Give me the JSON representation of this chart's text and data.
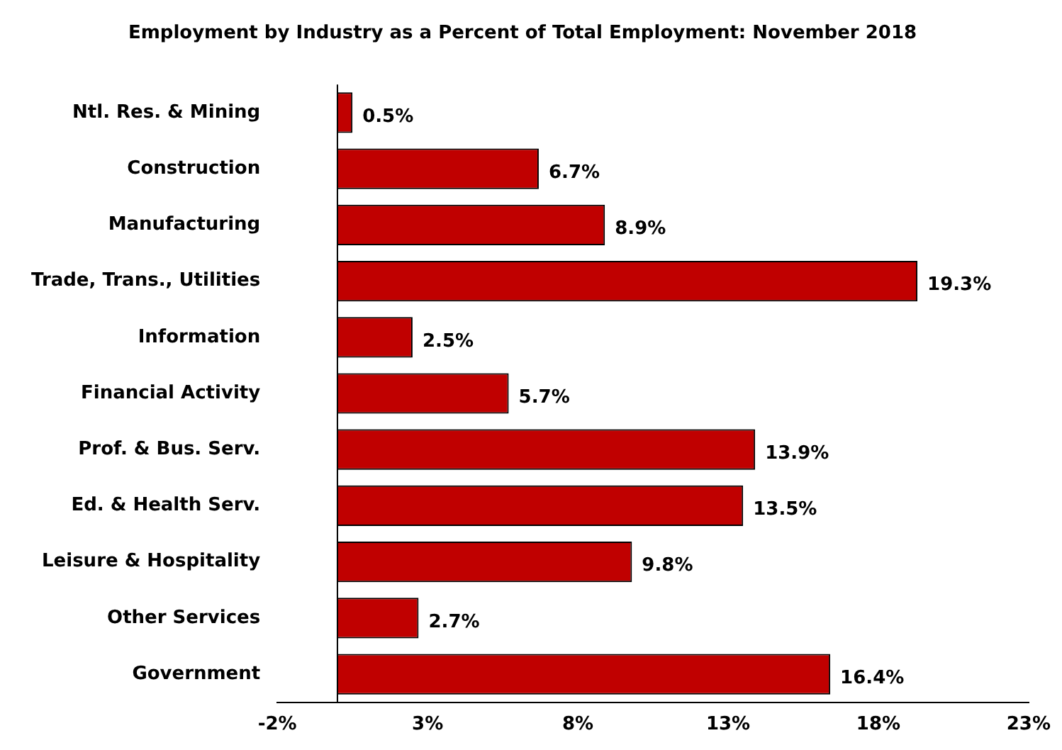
{
  "chart_data": {
    "type": "bar",
    "orientation": "horizontal",
    "title": "Employment by Industry as a Percent of Total Employment: November 2018",
    "categories": [
      "Ntl. Res. & Mining",
      "Construction",
      "Manufacturing",
      "Trade, Trans., Utilities",
      "Information",
      "Financial Activity",
      "Prof. & Bus. Serv.",
      "Ed. & Health Serv.",
      "Leisure & Hospitality",
      "Other Services",
      "Government"
    ],
    "values": [
      0.5,
      6.7,
      8.9,
      19.3,
      2.5,
      5.7,
      13.9,
      13.5,
      9.8,
      2.7,
      16.4
    ],
    "value_labels": [
      "0.5%",
      "6.7%",
      "8.9%",
      "19.3%",
      "2.5%",
      "5.7%",
      "13.9%",
      "13.5%",
      "9.8%",
      "2.7%",
      "16.4%"
    ],
    "color": "#c00000",
    "xlim": [
      -2,
      23
    ],
    "xticks": [
      {
        "value": -2,
        "label": "-2%"
      },
      {
        "value": 3,
        "label": "3%"
      },
      {
        "value": 8,
        "label": "8%"
      },
      {
        "value": 13,
        "label": "13%"
      },
      {
        "value": 18,
        "label": "18%"
      },
      {
        "value": 23,
        "label": "23%"
      }
    ],
    "grid": false,
    "legend": false
  }
}
